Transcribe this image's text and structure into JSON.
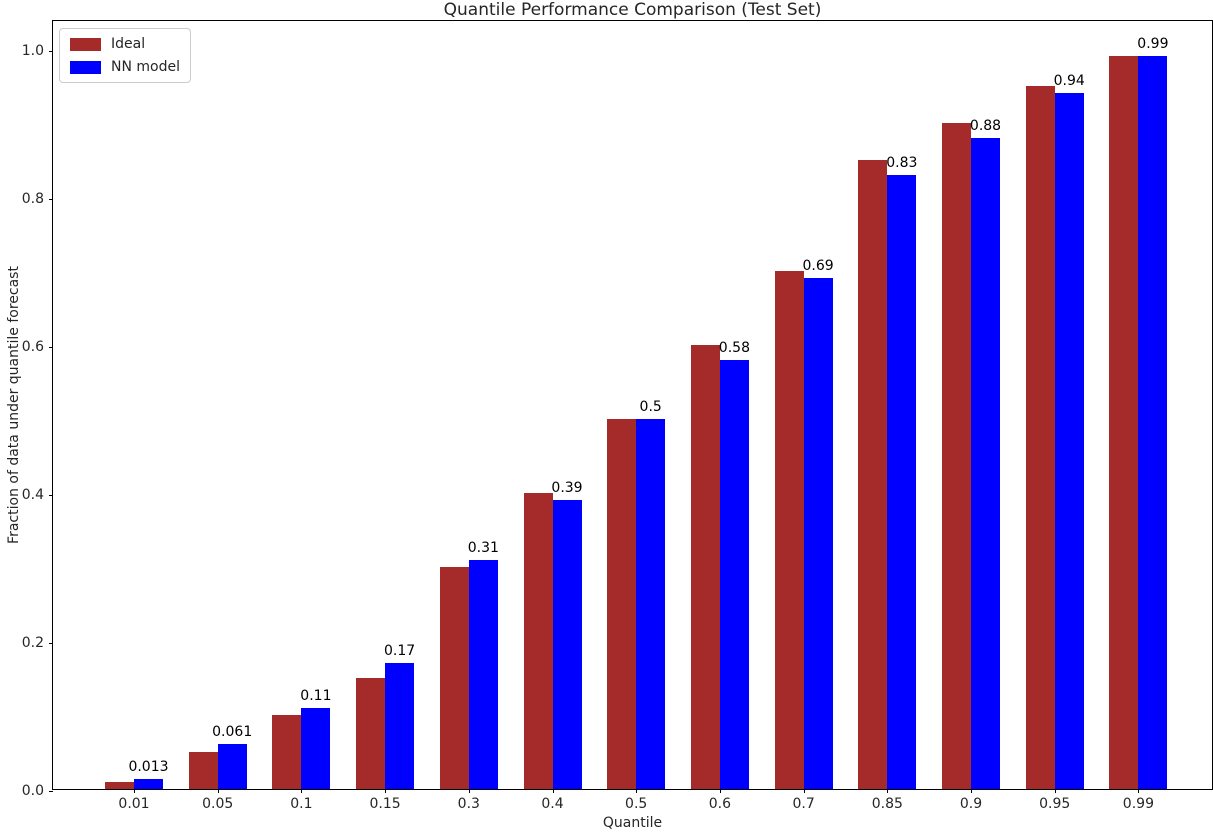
{
  "chart_data": {
    "type": "bar",
    "title": "Quantile Performance Comparison (Test Set)",
    "xlabel": "Quantile",
    "ylabel": "Fraction of data under quantile forecast",
    "categories": [
      "0.01",
      "0.05",
      "0.1",
      "0.15",
      "0.3",
      "0.4",
      "0.5",
      "0.6",
      "0.7",
      "0.85",
      "0.9",
      "0.95",
      "0.99"
    ],
    "series": [
      {
        "name": "Ideal",
        "color": "#a52a2a",
        "values": [
          0.01,
          0.05,
          0.1,
          0.15,
          0.3,
          0.4,
          0.5,
          0.6,
          0.7,
          0.85,
          0.9,
          0.95,
          0.99
        ]
      },
      {
        "name": "NN model",
        "color": "#0000ff",
        "values": [
          0.013,
          0.061,
          0.11,
          0.17,
          0.31,
          0.39,
          0.5,
          0.58,
          0.69,
          0.83,
          0.88,
          0.94,
          0.99
        ]
      }
    ],
    "bar_labels": [
      "0.013",
      "0.061",
      "0.11",
      "0.17",
      "0.31",
      "0.39",
      "0.5",
      "0.58",
      "0.69",
      "0.83",
      "0.88",
      "0.94",
      "0.99"
    ],
    "yticks": [
      "0.0",
      "0.2",
      "0.4",
      "0.6",
      "0.8",
      "1.0"
    ],
    "ylim": [
      0,
      1.04
    ],
    "grid": false,
    "legend_position": "upper left"
  }
}
